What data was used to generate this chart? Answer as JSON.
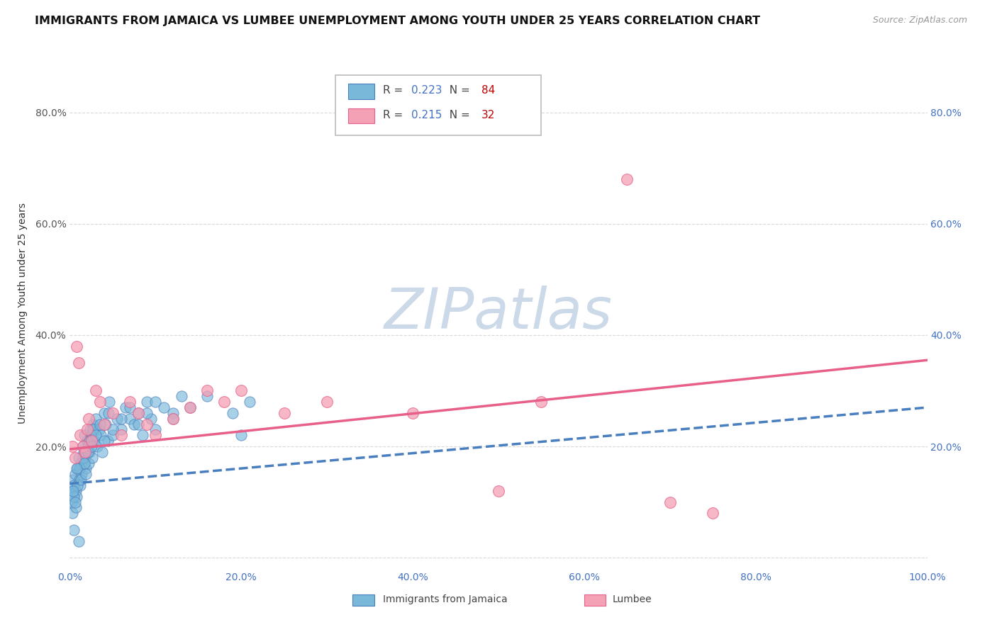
{
  "title": "IMMIGRANTS FROM JAMAICA VS LUMBEE UNEMPLOYMENT AMONG YOUTH UNDER 25 YEARS CORRELATION CHART",
  "source": "Source: ZipAtlas.com",
  "ylabel": "Unemployment Among Youth under 25 years",
  "xlim": [
    0,
    1.0
  ],
  "ylim": [
    -0.02,
    0.9
  ],
  "x_ticks": [
    0.0,
    0.2,
    0.4,
    0.6,
    0.8,
    1.0
  ],
  "x_tick_labels": [
    "0.0%",
    "20.0%",
    "40.0%",
    "60.0%",
    "80.0%",
    "100.0%"
  ],
  "y_ticks": [
    0.0,
    0.2,
    0.4,
    0.6,
    0.8
  ],
  "y_tick_labels": [
    "",
    "20.0%",
    "40.0%",
    "60.0%",
    "80.0%"
  ],
  "right_y_ticks": [
    0.2,
    0.4,
    0.6,
    0.8
  ],
  "right_y_tick_labels": [
    "20.0%",
    "40.0%",
    "60.0%",
    "80.0%"
  ],
  "jamaica_color": "#7ab8d9",
  "lumbee_color": "#f4a0b5",
  "jamaica_line_color": "#4a7fbf",
  "lumbee_line_color": "#e8608a",
  "jamaica_R": "0.223",
  "jamaica_N": "84",
  "lumbee_R": "0.215",
  "lumbee_N": "32",
  "watermark": "ZIPatlas",
  "watermark_color": "#ccd9e8",
  "background_color": "#ffffff",
  "grid_color": "#d8d8d8",
  "jamaica_line_x0": 0.0,
  "jamaica_line_y0": 0.133,
  "jamaica_line_x1": 1.0,
  "jamaica_line_y1": 0.27,
  "lumbee_line_x0": 0.0,
  "lumbee_line_y0": 0.195,
  "lumbee_line_x1": 1.0,
  "lumbee_line_y1": 0.355,
  "jamaica_scatter_x": [
    0.002,
    0.003,
    0.004,
    0.005,
    0.006,
    0.007,
    0.008,
    0.009,
    0.01,
    0.011,
    0.012,
    0.013,
    0.014,
    0.015,
    0.016,
    0.017,
    0.018,
    0.019,
    0.02,
    0.021,
    0.022,
    0.023,
    0.024,
    0.025,
    0.026,
    0.027,
    0.028,
    0.03,
    0.032,
    0.034,
    0.036,
    0.038,
    0.04,
    0.042,
    0.044,
    0.046,
    0.05,
    0.055,
    0.06,
    0.065,
    0.07,
    0.075,
    0.08,
    0.085,
    0.09,
    0.095,
    0.1,
    0.11,
    0.12,
    0.13,
    0.003,
    0.005,
    0.007,
    0.009,
    0.011,
    0.013,
    0.015,
    0.017,
    0.019,
    0.021,
    0.023,
    0.025,
    0.027,
    0.03,
    0.035,
    0.04,
    0.045,
    0.05,
    0.06,
    0.07,
    0.08,
    0.09,
    0.1,
    0.12,
    0.14,
    0.16,
    0.004,
    0.006,
    0.008,
    0.01,
    0.19,
    0.2,
    0.21,
    0.005
  ],
  "jamaica_scatter_y": [
    0.1,
    0.12,
    0.14,
    0.13,
    0.15,
    0.12,
    0.11,
    0.16,
    0.18,
    0.14,
    0.13,
    0.17,
    0.15,
    0.2,
    0.19,
    0.22,
    0.18,
    0.16,
    0.21,
    0.2,
    0.17,
    0.19,
    0.23,
    0.22,
    0.18,
    0.24,
    0.21,
    0.25,
    0.2,
    0.23,
    0.22,
    0.19,
    0.26,
    0.24,
    0.21,
    0.28,
    0.22,
    0.25,
    0.23,
    0.27,
    0.25,
    0.24,
    0.26,
    0.22,
    0.28,
    0.25,
    0.23,
    0.27,
    0.26,
    0.29,
    0.08,
    0.11,
    0.09,
    0.13,
    0.16,
    0.14,
    0.18,
    0.17,
    0.15,
    0.19,
    0.21,
    0.2,
    0.23,
    0.22,
    0.24,
    0.21,
    0.26,
    0.23,
    0.25,
    0.27,
    0.24,
    0.26,
    0.28,
    0.25,
    0.27,
    0.29,
    0.12,
    0.1,
    0.16,
    0.03,
    0.26,
    0.22,
    0.28,
    0.05
  ],
  "lumbee_scatter_x": [
    0.003,
    0.006,
    0.008,
    0.01,
    0.012,
    0.015,
    0.018,
    0.02,
    0.022,
    0.025,
    0.03,
    0.035,
    0.04,
    0.05,
    0.06,
    0.07,
    0.08,
    0.09,
    0.1,
    0.12,
    0.14,
    0.16,
    0.18,
    0.2,
    0.25,
    0.3,
    0.4,
    0.5,
    0.55,
    0.65,
    0.7,
    0.75
  ],
  "lumbee_scatter_y": [
    0.2,
    0.18,
    0.38,
    0.35,
    0.22,
    0.2,
    0.19,
    0.23,
    0.25,
    0.21,
    0.3,
    0.28,
    0.24,
    0.26,
    0.22,
    0.28,
    0.26,
    0.24,
    0.22,
    0.25,
    0.27,
    0.3,
    0.28,
    0.3,
    0.26,
    0.28,
    0.26,
    0.12,
    0.28,
    0.68,
    0.1,
    0.08
  ],
  "title_fontsize": 11.5,
  "axis_label_fontsize": 10,
  "tick_fontsize": 10,
  "legend_fontsize": 11
}
